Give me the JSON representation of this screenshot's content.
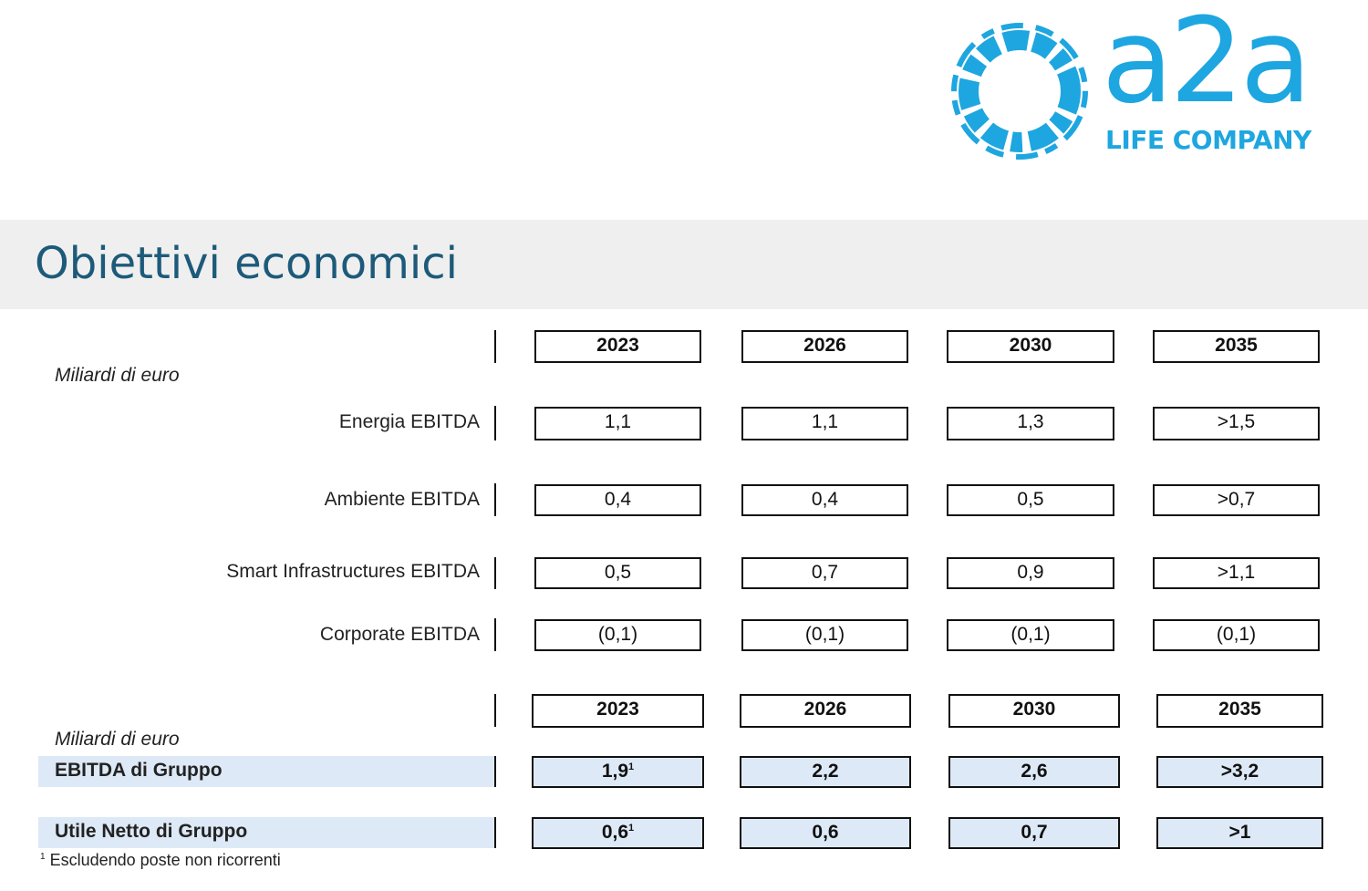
{
  "logo": {
    "word": "a2a",
    "tagline": "LIFE COMPANY",
    "color": "#1ea6e0"
  },
  "title": "Obiettivi economici",
  "segments": {
    "years": [
      "2023",
      "2026",
      "2030",
      "2035"
    ],
    "unit": "Miliardi di euro",
    "rows": [
      {
        "label": "Energia EBITDA",
        "values": [
          "1,1",
          "1,1",
          "1,3",
          ">1,5"
        ]
      },
      {
        "label": "Ambiente EBITDA",
        "values": [
          "0,4",
          "0,4",
          "0,5",
          ">0,7"
        ]
      },
      {
        "label": "Smart Infrastructures EBITDA",
        "values": [
          "0,5",
          "0,7",
          "0,9",
          ">1,1"
        ]
      },
      {
        "label": "Corporate EBITDA",
        "values": [
          "(0,1)",
          "(0,1)",
          "(0,1)",
          "(0,1)"
        ]
      }
    ]
  },
  "group": {
    "years": [
      "2023",
      "2026",
      "2030",
      "2035"
    ],
    "unit": "Miliardi di euro",
    "rows": [
      {
        "label": "EBITDA di Gruppo",
        "values": [
          "1,9",
          "2,2",
          "2,6",
          ">3,2"
        ],
        "first_note": "1"
      },
      {
        "label": "Utile Netto di Gruppo",
        "values": [
          "0,6",
          "0,6",
          "0,7",
          ">1"
        ],
        "first_note": "1"
      }
    ]
  },
  "footnote": {
    "mark": "1",
    "text": "Escludendo poste non ricorrenti"
  },
  "colors": {
    "title": "#1d5a7a",
    "band": "#efefef",
    "highlight": "#dde9f6"
  }
}
